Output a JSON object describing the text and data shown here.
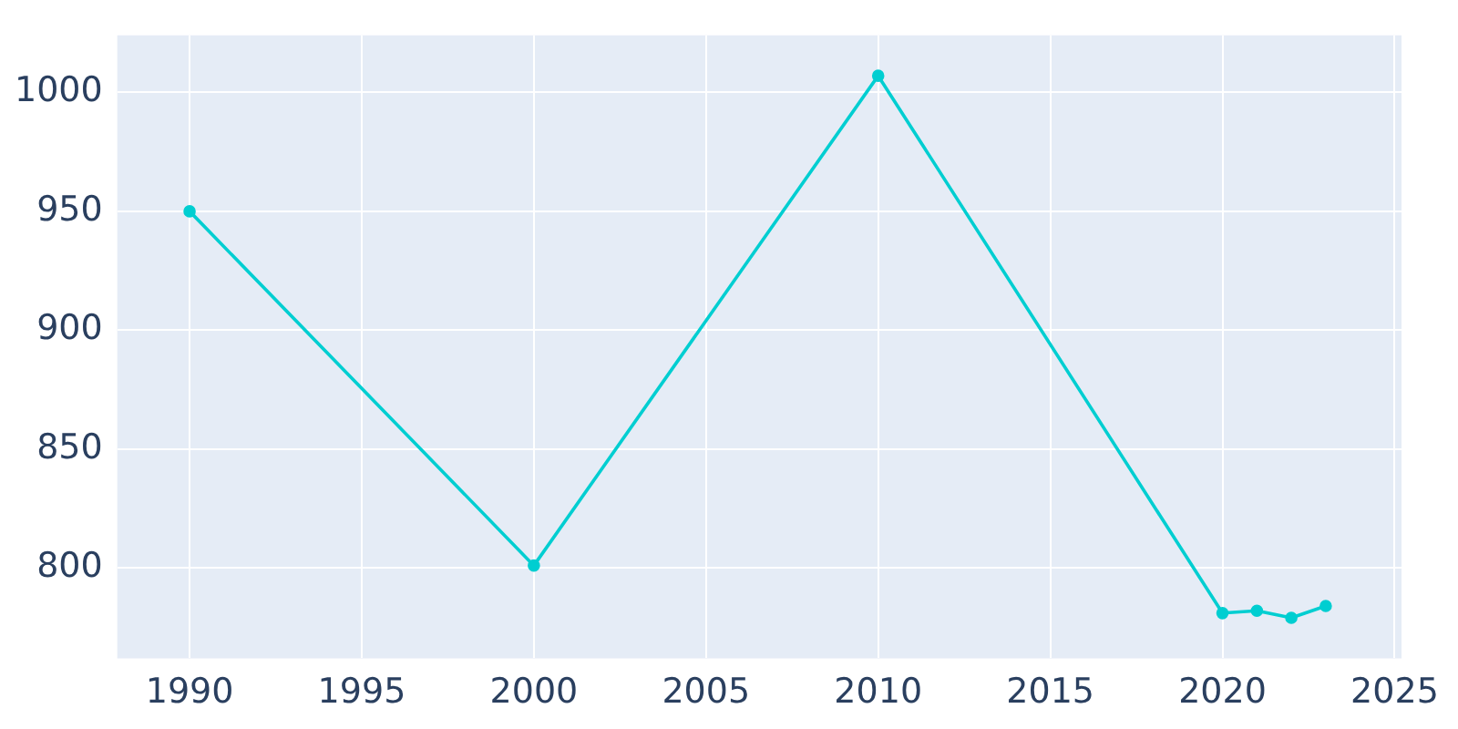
{
  "chart_data": {
    "type": "line",
    "x": [
      1990,
      2000,
      2010,
      2020,
      2021,
      2022,
      2023
    ],
    "series": [
      {
        "color": "#00ced1",
        "values": [
          950,
          801,
          1007,
          781,
          782,
          779,
          784
        ]
      }
    ],
    "xlim": [
      1987.9,
      2025.2
    ],
    "xticks": [
      1990,
      1995,
      2000,
      2005,
      2010,
      2015,
      2020,
      2025
    ],
    "ylim": [
      762,
      1024
    ],
    "yticks": [
      800,
      850,
      900,
      950,
      1000
    ],
    "grid": true,
    "legend": false,
    "marker": "circle",
    "line_style": "solid"
  }
}
